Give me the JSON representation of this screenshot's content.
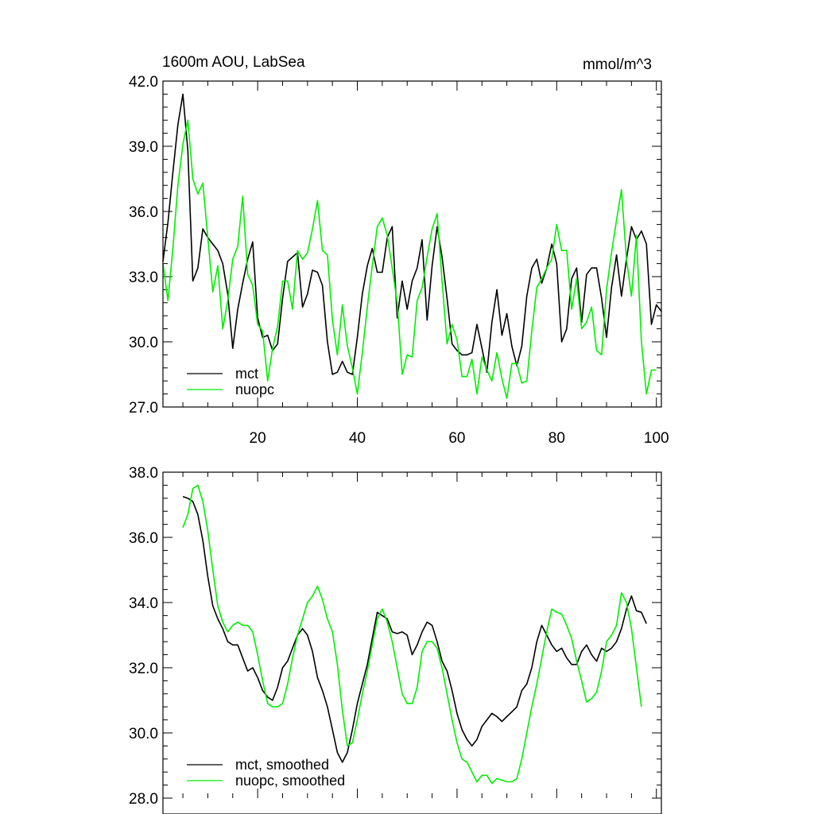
{
  "chart_data": [
    {
      "type": "line",
      "title": "1600m AOU, LabSea",
      "units": "mmol/m^3",
      "xlim": [
        1,
        101
      ],
      "ylim": [
        27.0,
        42.0
      ],
      "x_ticks": [
        20,
        40,
        60,
        80,
        100
      ],
      "y_ticks": [
        "27.0",
        "30.0",
        "33.0",
        "36.0",
        "39.0",
        "42.0"
      ],
      "legend": "bottom-left",
      "series": [
        {
          "name": "mct",
          "color": "#000000",
          "x_start": 1,
          "values": [
            33.7,
            35.5,
            37.8,
            40.0,
            41.4,
            38.8,
            32.8,
            33.4,
            35.2,
            34.8,
            34.5,
            34.2,
            33.6,
            32.2,
            29.7,
            31.5,
            32.7,
            33.8,
            34.6,
            31.1,
            30.2,
            30.3,
            29.6,
            29.9,
            32.0,
            33.7,
            33.9,
            34.1,
            31.6,
            32.2,
            33.3,
            33.2,
            32.6,
            30.0,
            28.5,
            28.6,
            29.1,
            28.6,
            28.5,
            30.2,
            32.2,
            33.5,
            34.3,
            33.2,
            33.2,
            34.8,
            35.3,
            31.1,
            32.8,
            31.5,
            32.8,
            33.4,
            34.7,
            31.0,
            33.5,
            35.3,
            33.9,
            32.0,
            29.9,
            29.6,
            29.4,
            29.4,
            29.5,
            30.8,
            29.7,
            28.6,
            30.9,
            32.4,
            30.3,
            31.3,
            29.8,
            28.9,
            29.8,
            32.1,
            33.4,
            33.8,
            32.7,
            33.4,
            34.5,
            33.6,
            30.0,
            30.6,
            32.9,
            33.4,
            30.9,
            33.1,
            33.4,
            33.4,
            32.0,
            30.2,
            32.5,
            34.0,
            32.1,
            33.8,
            35.3,
            34.7,
            35.1,
            34.5,
            30.8,
            31.7,
            31.4
          ]
        },
        {
          "name": "nuopc",
          "color": "#00ee00",
          "x_start": 1,
          "values": [
            33.6,
            31.9,
            34.3,
            37.2,
            39.1,
            40.2,
            37.5,
            36.8,
            37.3,
            34.8,
            32.3,
            33.5,
            30.6,
            31.9,
            33.8,
            34.4,
            36.7,
            33.1,
            32.6,
            30.8,
            30.5,
            28.2,
            29.7,
            30.7,
            32.8,
            32.8,
            31.5,
            34.2,
            33.8,
            34.1,
            35.2,
            36.5,
            34.2,
            34.0,
            31.0,
            29.4,
            31.7,
            29.8,
            28.8,
            27.6,
            29.5,
            31.6,
            33.5,
            35.3,
            35.7,
            34.9,
            33.4,
            31.8,
            28.5,
            29.4,
            29.3,
            31.9,
            32.5,
            33.9,
            35.2,
            35.9,
            32.8,
            29.9,
            30.8,
            30.1,
            28.4,
            28.4,
            29.2,
            27.6,
            29.3,
            28.7,
            28.2,
            29.5,
            28.3,
            27.4,
            29.0,
            29.0,
            28.1,
            28.2,
            30.5,
            32.5,
            32.9,
            33.4,
            33.8,
            35.4,
            34.2,
            34.2,
            31.5,
            32.9,
            30.6,
            30.9,
            31.6,
            29.6,
            29.4,
            32.4,
            34.1,
            35.6,
            37.0,
            33.8,
            32.1,
            34.9,
            30.0,
            27.6,
            28.7,
            28.7
          ]
        }
      ]
    },
    {
      "type": "line",
      "xlim": [
        1,
        101
      ],
      "ylim": [
        28.0,
        38.0
      ],
      "y_ticks": [
        "28.0",
        "30.0",
        "32.0",
        "34.0",
        "36.0",
        "38.0"
      ],
      "legend": "bottom-left",
      "series": [
        {
          "name": "mct, smoothed",
          "color": "#000000",
          "x_start": 5,
          "values": [
            37.25,
            37.2,
            37.1,
            36.7,
            35.9,
            34.8,
            33.9,
            33.5,
            33.2,
            32.8,
            32.7,
            32.7,
            32.3,
            31.9,
            32.0,
            31.7,
            31.3,
            31.1,
            31.0,
            31.4,
            32.0,
            32.2,
            32.6,
            33.0,
            33.2,
            33.0,
            32.5,
            31.7,
            31.3,
            30.8,
            30.1,
            29.4,
            29.1,
            29.4,
            30.1,
            30.9,
            31.5,
            32.1,
            32.9,
            33.7,
            33.6,
            33.5,
            33.1,
            33.05,
            33.1,
            33.0,
            32.4,
            32.7,
            33.1,
            33.4,
            33.3,
            32.8,
            32.2,
            31.9,
            31.3,
            30.6,
            30.1,
            29.8,
            29.6,
            29.8,
            30.2,
            30.4,
            30.6,
            30.5,
            30.35,
            30.5,
            30.65,
            30.8,
            31.3,
            31.5,
            32.0,
            32.8,
            33.3,
            33.0,
            32.7,
            32.5,
            32.6,
            32.3,
            32.1,
            32.1,
            32.5,
            32.7,
            32.4,
            32.2,
            32.6,
            32.5,
            32.6,
            32.8,
            33.2,
            33.8,
            34.2,
            33.75,
            33.7,
            33.35
          ]
        },
        {
          "name": "nuopc, smoothed",
          "color": "#00ee00",
          "x_start": 5,
          "values": [
            36.3,
            36.7,
            37.5,
            37.6,
            37.1,
            36.2,
            35.0,
            33.9,
            33.4,
            33.1,
            33.3,
            33.4,
            33.3,
            33.3,
            33.1,
            32.4,
            31.6,
            30.9,
            30.8,
            30.8,
            30.9,
            31.5,
            32.3,
            33.0,
            33.5,
            34.0,
            34.2,
            34.5,
            34.1,
            33.5,
            33.1,
            32.1,
            30.7,
            29.6,
            29.7,
            30.4,
            31.2,
            31.9,
            32.7,
            33.5,
            33.8,
            33.4,
            32.8,
            32.0,
            31.2,
            30.9,
            30.9,
            31.4,
            32.5,
            32.8,
            32.8,
            32.6,
            32.0,
            31.2,
            30.4,
            29.7,
            29.2,
            29.1,
            28.8,
            28.5,
            28.7,
            28.7,
            28.45,
            28.6,
            28.55,
            28.5,
            28.5,
            28.6,
            29.2,
            30.0,
            30.8,
            31.5,
            32.3,
            33.1,
            33.8,
            33.7,
            33.65,
            33.3,
            32.9,
            32.2,
            31.6,
            30.95,
            31.05,
            31.25,
            31.9,
            32.8,
            33.0,
            33.3,
            34.3,
            34.0,
            33.2,
            32.0,
            30.8
          ]
        }
      ]
    }
  ]
}
